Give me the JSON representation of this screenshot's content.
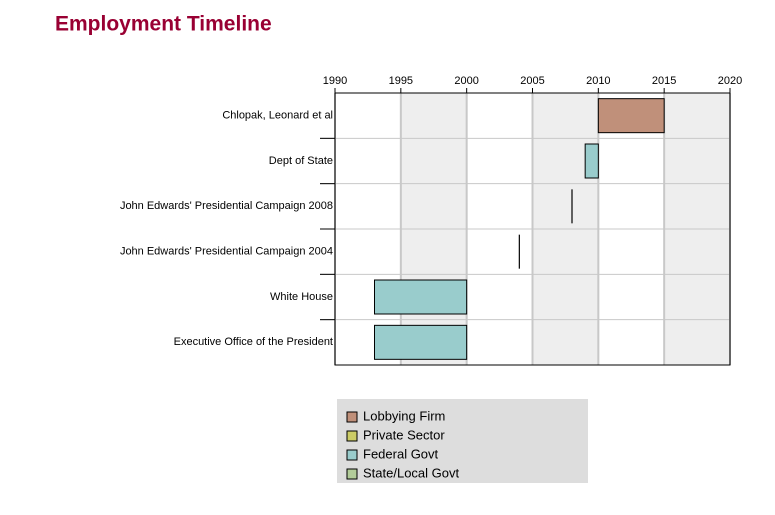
{
  "chart_data": {
    "type": "timeline",
    "title": "Employment Timeline",
    "categories": [
      "Chlopak, Leonard et al",
      "Dept of State",
      "John Edwards' Presidential Campaign 2008",
      "John Edwards' Presidential Campaign 2004",
      "White House",
      "Executive Office of the President"
    ],
    "starts": [
      2010,
      2009,
      2008,
      2004,
      1993,
      1993
    ],
    "ends": [
      2015,
      2010,
      2008,
      2004,
      2000,
      2000
    ],
    "colors": [
      "#c0907a",
      "#99cccc",
      "#000000",
      "#000000",
      "#99cccc",
      "#99cccc"
    ],
    "xlim": [
      1990,
      2020
    ],
    "xticks": [
      1990,
      1995,
      2000,
      2005,
      2010,
      2015,
      2020
    ],
    "grid": true,
    "legend": [
      {
        "name": "Lobbying Firm",
        "color": "#c0907a"
      },
      {
        "name": "Private Sector",
        "color": "#cccc66"
      },
      {
        "name": "Federal Govt",
        "color": "#99cccc"
      },
      {
        "name": "State/Local Govt",
        "color": "#b2cc99"
      }
    ]
  }
}
